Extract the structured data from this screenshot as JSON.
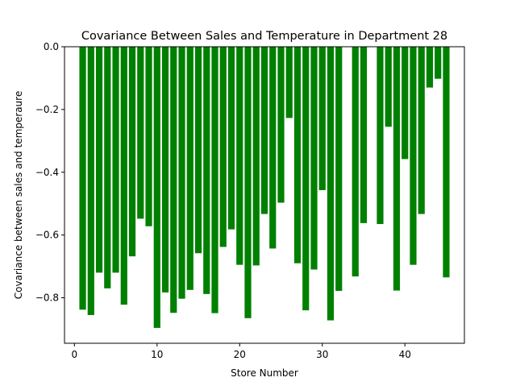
{
  "chart_data": {
    "type": "bar",
    "title": "Covariance Between Sales and Temperature in Department 28",
    "xlabel": "Store Number",
    "ylabel": "Covariance between sales and temperaure",
    "xlim": [
      -1.2,
      47.2
    ],
    "ylim": [
      -0.945,
      0.0
    ],
    "x_ticks": [
      0,
      10,
      20,
      30,
      40
    ],
    "y_ticks": [
      0.0,
      -0.2,
      -0.4,
      -0.6,
      -0.8
    ],
    "y_tick_labels": [
      "0.0",
      "−0.2",
      "−0.4",
      "−0.6",
      "−0.8"
    ],
    "bar_color": "#008000",
    "grid": false,
    "x": [
      1,
      2,
      3,
      4,
      5,
      6,
      7,
      8,
      9,
      10,
      11,
      12,
      13,
      14,
      15,
      16,
      17,
      18,
      19,
      20,
      21,
      22,
      23,
      24,
      25,
      26,
      27,
      28,
      29,
      30,
      31,
      32,
      34,
      35,
      37,
      38,
      39,
      40,
      41,
      42,
      43,
      44,
      45
    ],
    "values": [
      -0.838,
      -0.855,
      -0.72,
      -0.77,
      -0.72,
      -0.822,
      -0.668,
      -0.548,
      -0.572,
      -0.896,
      -0.783,
      -0.848,
      -0.803,
      -0.775,
      -0.658,
      -0.788,
      -0.849,
      -0.638,
      -0.582,
      -0.695,
      -0.865,
      -0.697,
      -0.533,
      -0.643,
      -0.497,
      -0.227,
      -0.69,
      -0.84,
      -0.71,
      -0.457,
      -0.872,
      -0.778,
      -0.732,
      -0.562,
      -0.565,
      -0.255,
      -0.777,
      -0.358,
      -0.695,
      -0.533,
      -0.13,
      -0.102,
      -0.735
    ]
  }
}
